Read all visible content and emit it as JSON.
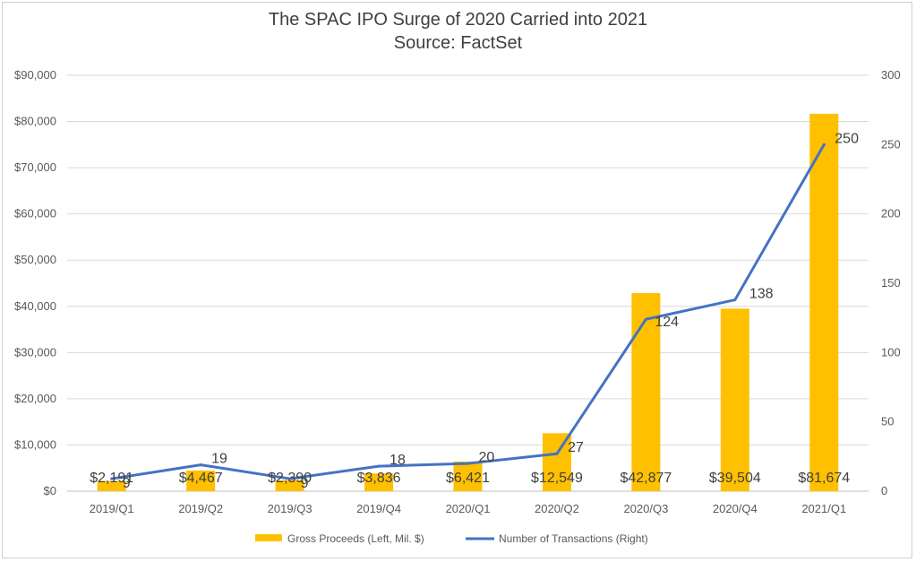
{
  "chart_data": {
    "type": "bar",
    "title": "The SPAC IPO Surge of 2020 Carried into 2021",
    "subtitle": "Source: FactSet",
    "categories": [
      "2019/Q1",
      "2019/Q2",
      "2019/Q3",
      "2019/Q4",
      "2020/Q1",
      "2020/Q2",
      "2020/Q3",
      "2020/Q4",
      "2021/Q1"
    ],
    "series": [
      {
        "name": "Gross Proceeds (Left, Mil. $)",
        "type": "bar",
        "axis": "left",
        "color": "#FFC000",
        "values": [
          2191,
          4467,
          2390,
          3836,
          6421,
          12549,
          42877,
          39504,
          81674
        ],
        "labels": [
          "$2,191",
          "$4,467",
          "$2,390",
          "$3,836",
          "$6,421",
          "$12,549",
          "$42,877",
          "$39,504",
          "$81,674"
        ]
      },
      {
        "name": "Number of Transactions (Right)",
        "type": "line",
        "axis": "right",
        "color": "#4472C4",
        "values": [
          9,
          19,
          9,
          18,
          20,
          27,
          124,
          138,
          250
        ],
        "labels": [
          "9",
          "19",
          "9",
          "18",
          "20",
          "27",
          "124",
          "138",
          "250"
        ]
      }
    ],
    "y_left": {
      "min": 0,
      "max": 90000,
      "ticks": [
        0,
        10000,
        20000,
        30000,
        40000,
        50000,
        60000,
        70000,
        80000,
        90000
      ],
      "tick_labels": [
        "$0",
        "$10,000",
        "$20,000",
        "$30,000",
        "$40,000",
        "$50,000",
        "$60,000",
        "$70,000",
        "$80,000",
        "$90,000"
      ]
    },
    "y_right": {
      "min": 0,
      "max": 300,
      "ticks": [
        0,
        50,
        100,
        150,
        200,
        250,
        300
      ],
      "tick_labels": [
        "0",
        "50",
        "100",
        "150",
        "200",
        "250",
        "300"
      ]
    },
    "grid": true,
    "legend": "bottom"
  }
}
